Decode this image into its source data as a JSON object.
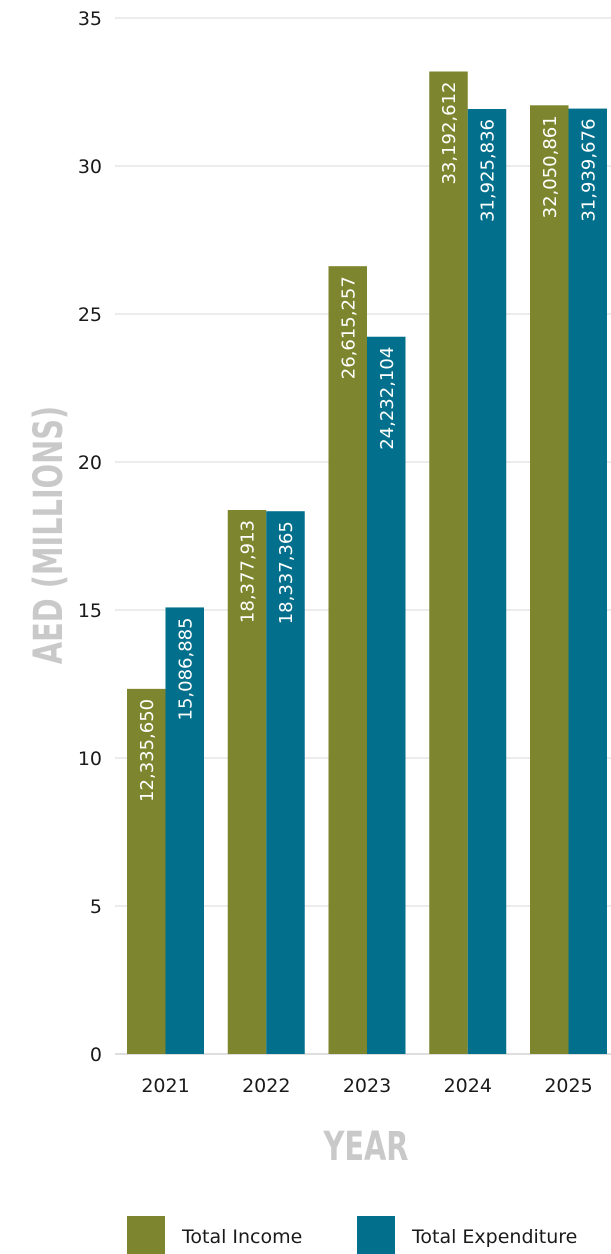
{
  "chart_data": {
    "type": "bar",
    "title": "",
    "xlabel": "YEAR",
    "ylabel": "AED (MILLIONS)",
    "ylim": [
      0,
      35
    ],
    "yticks": [
      0,
      5,
      10,
      15,
      20,
      25,
      30,
      35
    ],
    "grid": true,
    "legend_position": "bottom",
    "categories": [
      "2021",
      "2022",
      "2023",
      "2024",
      "2025"
    ],
    "series": [
      {
        "name": "Total Income",
        "color": "#7d862e",
        "values": [
          12.33565,
          18.377913,
          26.615257,
          33.192612,
          32.050861
        ],
        "labels": [
          "12,335,650",
          "18,377,913",
          "26,615,257",
          "33,192,612",
          "32,050,861"
        ]
      },
      {
        "name": "Total Expenditure",
        "color": "#02708c",
        "values": [
          15.086885,
          18.337365,
          24.232104,
          31.925836,
          31.939676
        ],
        "labels": [
          "15,086,885",
          "18,337,365",
          "24,232,104",
          "31,925,836",
          "31,939,676"
        ]
      }
    ]
  }
}
